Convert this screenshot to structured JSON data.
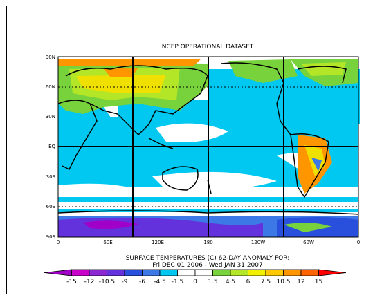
{
  "title": "NCEP OPERATIONAL DATASET",
  "caption_line1": "SURFACE TEMPERATURES (C)   62-DAY ANOMALY FOR:",
  "caption_line2": "Fri DEC 01 2006 - Wed JAN 31 2007",
  "lat_labels": [
    "90N",
    "60N",
    "30N",
    "EQ",
    "30S",
    "60S",
    "90S"
  ],
  "lon_labels": [
    "0",
    "60E",
    "120E",
    "180",
    "120W",
    "60W",
    "0"
  ],
  "colorbar": {
    "labels": [
      "-15",
      "-12",
      "-10.5",
      "-9",
      "-6",
      "-4.5",
      "-1.5",
      "0",
      "1.5",
      "4.5",
      "6",
      "7.5",
      "10.5",
      "12",
      "15"
    ],
    "colors": [
      "#a000c8",
      "#c800c8",
      "#8c28d2",
      "#6432dc",
      "#2850dc",
      "#3c78e6",
      "#00c8f0",
      "#ffffff",
      "#ffffff",
      "#78d23c",
      "#b4e628",
      "#f0f000",
      "#ffc800",
      "#ff9600",
      "#ff6400",
      "#ff0000"
    ]
  },
  "colors": {
    "ocean_anomaly": "#00c8f0",
    "neutral": "#ffffff",
    "warm_land": "#f0e000",
    "cold_antarctic": "#6432dc"
  }
}
